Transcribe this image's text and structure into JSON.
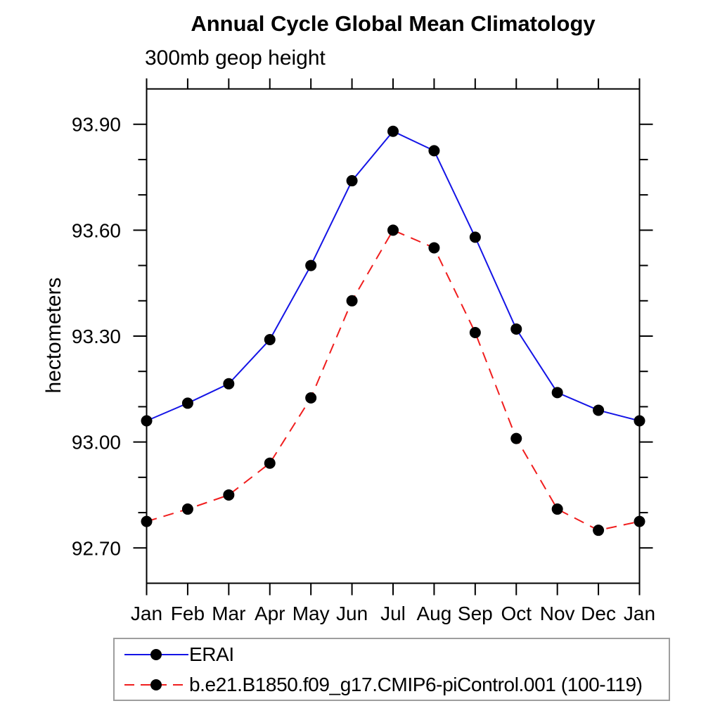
{
  "header": {
    "title": "Annual Cycle Global Mean Climatology",
    "subtitle": "300mb geop height"
  },
  "chart_data": {
    "type": "line",
    "title": "Annual Cycle Global Mean Climatology",
    "subtitle": "300mb geop height",
    "xlabel": "",
    "ylabel": "hectometers",
    "categories": [
      "Jan",
      "Feb",
      "Mar",
      "Apr",
      "May",
      "Jun",
      "Jul",
      "Aug",
      "Sep",
      "Oct",
      "Nov",
      "Dec",
      "Jan"
    ],
    "ylim": [
      92.6,
      94.0
    ],
    "yticks_major": [
      92.7,
      93.0,
      93.3,
      93.6,
      93.9
    ],
    "ytick_labels": [
      "92.70",
      "93.00",
      "93.30",
      "93.60",
      "93.90"
    ],
    "ytick_minor_step": 0.1,
    "grid": false,
    "legend_position": "bottom-left-box",
    "axis_color": "#000000",
    "marker_color": "#000000",
    "series": [
      {
        "name": "ERAI",
        "color": "#1414e6",
        "style": "solid",
        "marker": "filled-circle",
        "values": [
          93.06,
          93.11,
          93.165,
          93.29,
          93.5,
          93.74,
          93.88,
          93.825,
          93.58,
          93.32,
          93.14,
          93.09,
          93.06
        ]
      },
      {
        "name": "b.e21.B1850.f09_g17.CMIP6-piControl.001 (100-119)",
        "color": "#f01e1e",
        "style": "dashed",
        "marker": "filled-circle",
        "values": [
          92.775,
          92.81,
          92.85,
          92.94,
          93.125,
          93.4,
          93.6,
          93.55,
          93.31,
          93.01,
          92.81,
          92.75,
          92.775
        ]
      }
    ]
  }
}
